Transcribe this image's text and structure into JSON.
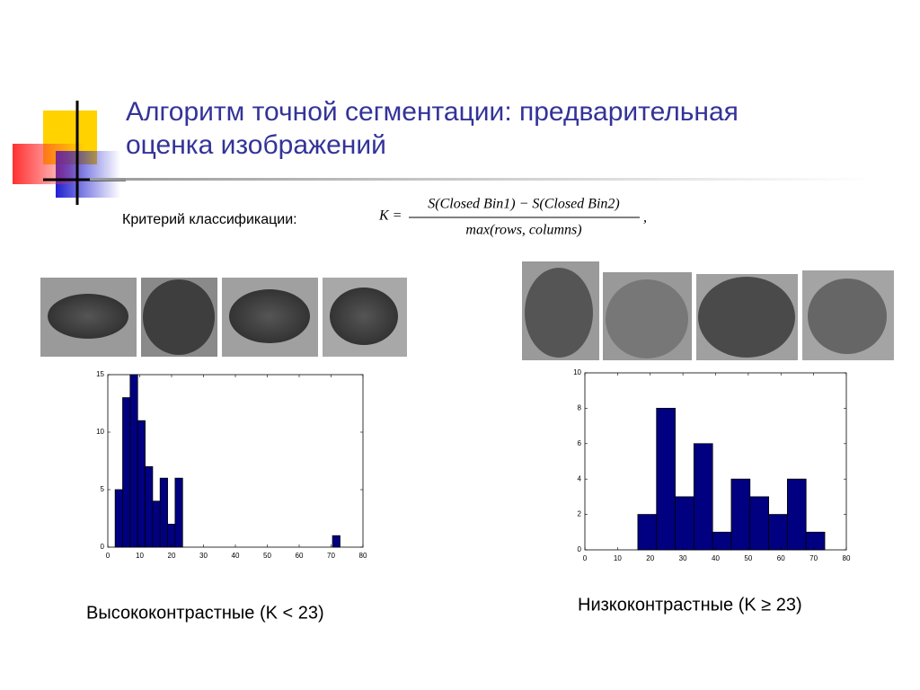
{
  "title_lines": [
    "Алгоритм точной сегментации: предварительная",
    "оценка изображений"
  ],
  "criterion": "Критерий классификации:",
  "formula": {
    "lhs": "K =",
    "numerator": "S(Closed Bin1) − S(Closed Bin2)",
    "denominator": "max(rows, columns)",
    "tail": ","
  },
  "chart_data": [
    {
      "type": "histogram",
      "caption": "Высококонтрастные (K < 23)",
      "color": "#000080",
      "bins": [
        2.3,
        4.65,
        7,
        9.35,
        11.7,
        14.05,
        16.4,
        18.75,
        21.1,
        23.45,
        25.8,
        28.15,
        30.5,
        32.85,
        35.2,
        37.55,
        39.9,
        42.25,
        44.6,
        46.95,
        49.3,
        51.65,
        54,
        56.35,
        58.7,
        61.05,
        63.4,
        65.75,
        68.1,
        70.45,
        72.8
      ],
      "counts": [
        5,
        13,
        15,
        11,
        7,
        4,
        6,
        2,
        6,
        0,
        0,
        0,
        0,
        0,
        0,
        0,
        0,
        0,
        0,
        0,
        0,
        0,
        0,
        0,
        0,
        0,
        0,
        0,
        0,
        1
      ],
      "xlim": [
        0,
        80
      ],
      "xticks": [
        0,
        10,
        20,
        30,
        40,
        50,
        60,
        70,
        80
      ],
      "ylim": [
        0,
        15
      ],
      "yticks": [
        0,
        5,
        10,
        15
      ]
    },
    {
      "type": "histogram",
      "caption": "Низкоконтрастные (K ≥ 23)",
      "color": "#000080",
      "bins": [
        16.2,
        21.92,
        27.64,
        33.36,
        39.08,
        44.8,
        50.52,
        56.24,
        61.96,
        67.68,
        73.4
      ],
      "counts": [
        2,
        8,
        3,
        6,
        1,
        4,
        3,
        2,
        4,
        1
      ],
      "xlim": [
        0,
        80
      ],
      "xticks": [
        0,
        10,
        20,
        30,
        40,
        50,
        60,
        70,
        80
      ],
      "ylim": [
        0,
        10
      ],
      "yticks": [
        0,
        2,
        4,
        6,
        8,
        10
      ]
    }
  ]
}
